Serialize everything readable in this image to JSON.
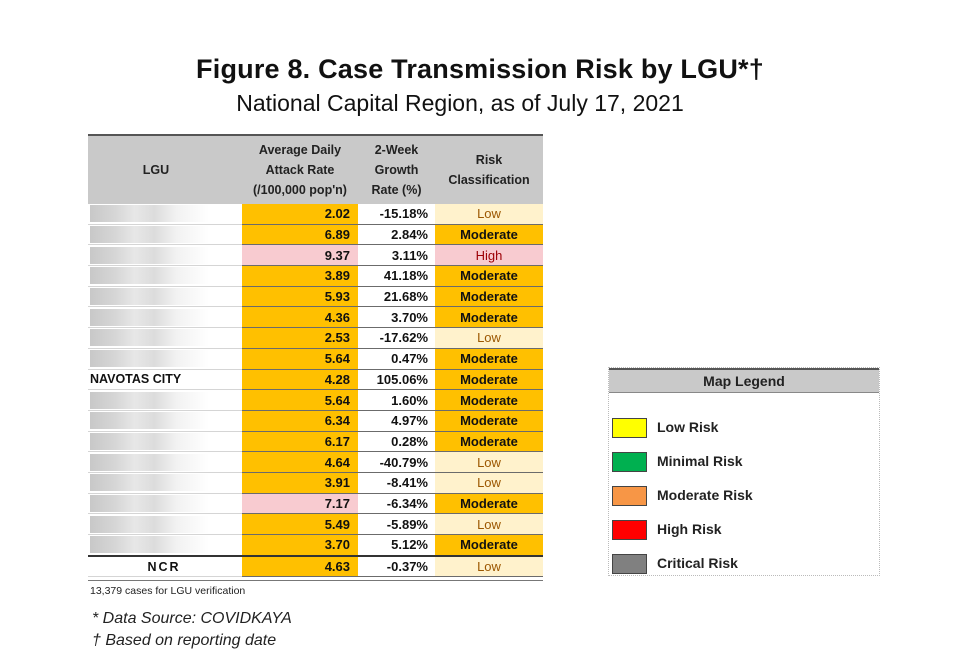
{
  "header": {
    "title": "Figure 8.  Case Transmission Risk by LGU*†",
    "subtitle": "National Capital Region, as of July 17, 2021"
  },
  "table": {
    "columns": {
      "lgu": "LGU",
      "attack_1": "Average Daily",
      "attack_2": "Attack Rate",
      "attack_3": "(/100,000 pop'n)",
      "growth_1": "2-Week",
      "growth_2": "Growth",
      "growth_3": "Rate (%)",
      "risk_1": "Risk",
      "risk_2": "Classification"
    },
    "rows": [
      {
        "lgu": "",
        "attack": "2.02",
        "growth": "-15.18%",
        "risk": "Low",
        "level": "low"
      },
      {
        "lgu": "",
        "attack": "6.89",
        "growth": "2.84%",
        "risk": "Moderate",
        "level": "mod"
      },
      {
        "lgu": "",
        "attack": "9.37",
        "growth": "3.11%",
        "risk": "High",
        "level": "high"
      },
      {
        "lgu": "",
        "attack": "3.89",
        "growth": "41.18%",
        "risk": "Moderate",
        "level": "mod"
      },
      {
        "lgu": "",
        "attack": "5.93",
        "growth": "21.68%",
        "risk": "Moderate",
        "level": "mod"
      },
      {
        "lgu": "",
        "attack": "4.36",
        "growth": "3.70%",
        "risk": "Moderate",
        "level": "mod"
      },
      {
        "lgu": "",
        "attack": "2.53",
        "growth": "-17.62%",
        "risk": "Low",
        "level": "low"
      },
      {
        "lgu": "",
        "attack": "5.64",
        "growth": "0.47%",
        "risk": "Moderate",
        "level": "mod"
      },
      {
        "lgu": "NAVOTAS CITY",
        "attack": "4.28",
        "growth": "105.06%",
        "risk": "Moderate",
        "level": "mod"
      },
      {
        "lgu": "",
        "attack": "5.64",
        "growth": "1.60%",
        "risk": "Moderate",
        "level": "mod"
      },
      {
        "lgu": "",
        "attack": "6.34",
        "growth": "4.97%",
        "risk": "Moderate",
        "level": "mod"
      },
      {
        "lgu": "",
        "attack": "6.17",
        "growth": "0.28%",
        "risk": "Moderate",
        "level": "mod"
      },
      {
        "lgu": "",
        "attack": "4.64",
        "growth": "-40.79%",
        "risk": "Low",
        "level": "low"
      },
      {
        "lgu": "",
        "attack": "3.91",
        "growth": "-8.41%",
        "risk": "Low",
        "level": "low"
      },
      {
        "lgu": "",
        "attack": "7.17",
        "growth": "-6.34%",
        "risk": "Moderate",
        "level": "mod"
      },
      {
        "lgu": "",
        "attack": "5.49",
        "growth": "-5.89%",
        "risk": "Low",
        "level": "low"
      },
      {
        "lgu": "",
        "attack": "3.70",
        "growth": "5.12%",
        "risk": "Moderate",
        "level": "mod"
      }
    ],
    "total": {
      "lgu": "NCR",
      "attack": "4.63",
      "growth": "-0.37%",
      "risk": "Low",
      "level": "low"
    },
    "pink_attack_rows": [
      2,
      14
    ]
  },
  "footnotes": {
    "verification": "13,379 cases for LGU verification",
    "source": "* Data Source: COVIDKAYA",
    "reporting": "† Based on reporting date"
  },
  "legend": {
    "title": "Map Legend",
    "items": [
      {
        "label": "Low Risk",
        "color": "#ffff00"
      },
      {
        "label": "Minimal Risk",
        "color": "#00b050"
      },
      {
        "label": "Moderate Risk",
        "color": "#f79646"
      },
      {
        "label": "High Risk",
        "color": "#ff0000"
      },
      {
        "label": "Critical Risk",
        "color": "#808080"
      }
    ]
  }
}
